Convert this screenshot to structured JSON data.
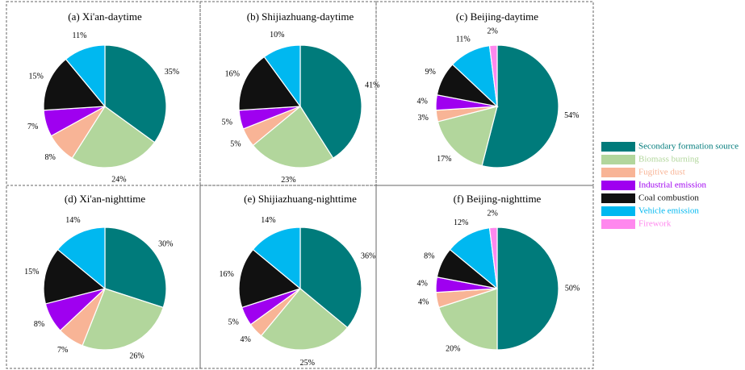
{
  "chart_data": [
    {
      "type": "pie",
      "title": "(a) Xi'an-daytime",
      "categories": [
        "Secondary formation source",
        "Biomass burning",
        "Fugitive dust",
        "Industrial emission",
        "Coal combustion",
        "Vehicle emission"
      ],
      "values": [
        35,
        24,
        8,
        7,
        15,
        11
      ],
      "value_labels": [
        "35%",
        "24%",
        "8%",
        "7%",
        "15%",
        "11%"
      ],
      "colors": [
        "#007b7b",
        "#b2d69c",
        "#f8b496",
        "#9f00f0",
        "#111111",
        "#00b8f0"
      ]
    },
    {
      "type": "pie",
      "title": "(b) Shijiazhuang-daytime",
      "categories": [
        "Secondary formation source",
        "Biomass burning",
        "Fugitive dust",
        "Industrial emission",
        "Coal combustion",
        "Vehicle emission"
      ],
      "values": [
        41,
        23,
        5,
        5,
        16,
        10
      ],
      "value_labels": [
        "41%",
        "23%",
        "5%",
        "5%",
        "16%",
        "10%"
      ],
      "colors": [
        "#007b7b",
        "#b2d69c",
        "#f8b496",
        "#9f00f0",
        "#111111",
        "#00b8f0"
      ]
    },
    {
      "type": "pie",
      "title": "(c) Beijing-daytime",
      "categories": [
        "Secondary formation source",
        "Biomass burning",
        "Fugitive dust",
        "Industrial emission",
        "Coal combustion",
        "Vehicle emission",
        "Firework"
      ],
      "values": [
        54,
        17,
        3,
        4,
        9,
        11,
        2
      ],
      "value_labels": [
        "54%",
        "17%",
        "3%",
        "4%",
        "9%",
        "11%",
        "2%"
      ],
      "colors": [
        "#007b7b",
        "#b2d69c",
        "#f8b496",
        "#9f00f0",
        "#111111",
        "#00b8f0",
        "#ff88ee"
      ]
    },
    {
      "type": "pie",
      "title": "(d) Xi'an-nighttime",
      "categories": [
        "Secondary formation source",
        "Biomass burning",
        "Fugitive dust",
        "Industrial emission",
        "Coal combustion",
        "Vehicle emission"
      ],
      "values": [
        30,
        26,
        7,
        8,
        15,
        14
      ],
      "value_labels": [
        "30%",
        "26%",
        "7%",
        "8%",
        "15%",
        "14%"
      ],
      "colors": [
        "#007b7b",
        "#b2d69c",
        "#f8b496",
        "#9f00f0",
        "#111111",
        "#00b8f0"
      ]
    },
    {
      "type": "pie",
      "title": "(e) Shijiazhuang-nighttime",
      "categories": [
        "Secondary formation source",
        "Biomass burning",
        "Fugitive dust",
        "Industrial emission",
        "Coal combustion",
        "Vehicle emission"
      ],
      "values": [
        36,
        25,
        4,
        5,
        16,
        14
      ],
      "value_labels": [
        "36%",
        "25%",
        "4%",
        "5%",
        "16%",
        "14%"
      ],
      "colors": [
        "#007b7b",
        "#b2d69c",
        "#f8b496",
        "#9f00f0",
        "#111111",
        "#00b8f0"
      ]
    },
    {
      "type": "pie",
      "title": "(f) Beijing-nighttime",
      "categories": [
        "Secondary formation source",
        "Biomass burning",
        "Fugitive dust",
        "Industrial emission",
        "Coal combustion",
        "Vehicle emission",
        "Firework"
      ],
      "values": [
        50,
        20,
        4,
        4,
        8,
        12,
        2
      ],
      "value_labels": [
        "50%",
        "20%",
        "4%",
        "4%",
        "8%",
        "12%",
        "2%"
      ],
      "colors": [
        "#007b7b",
        "#b2d69c",
        "#f8b496",
        "#9f00f0",
        "#111111",
        "#00b8f0",
        "#ff88ee"
      ]
    }
  ]
}
